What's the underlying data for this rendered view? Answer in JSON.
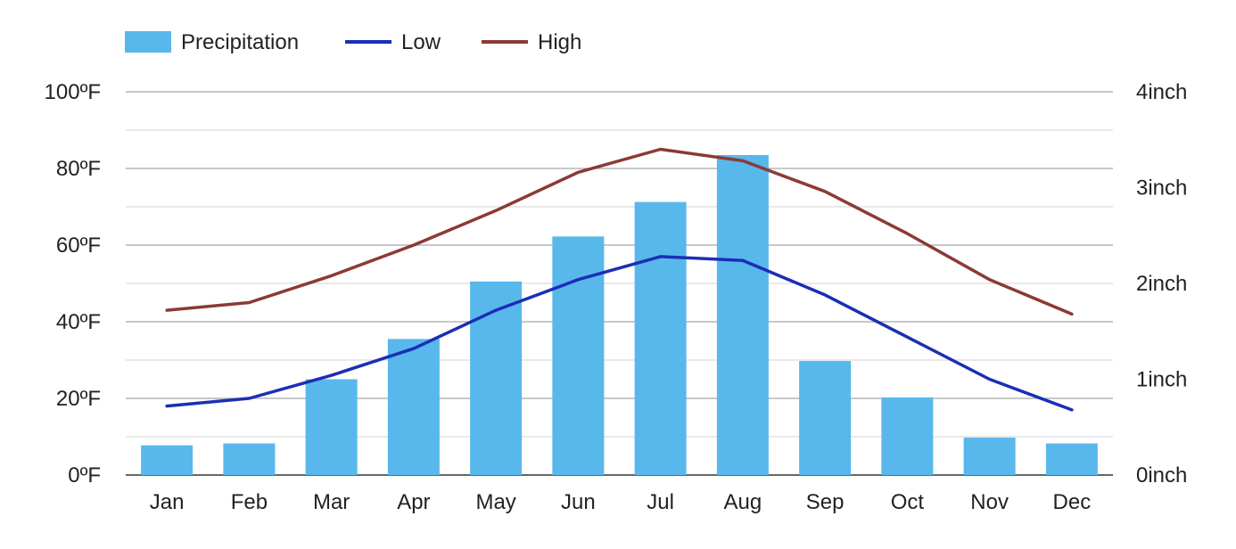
{
  "chart_data": {
    "type": "bar",
    "categories": [
      "Jan",
      "Feb",
      "Mar",
      "Apr",
      "May",
      "Jun",
      "Jul",
      "Aug",
      "Sep",
      "Oct",
      "Nov",
      "Dec"
    ],
    "series": [
      {
        "name": "Precipitation",
        "type": "bar",
        "axis": "right",
        "unit": "inch",
        "color": "#58b8ec",
        "values": [
          0.31,
          0.33,
          1.0,
          1.42,
          2.02,
          2.49,
          2.85,
          3.34,
          1.19,
          0.81,
          0.39,
          0.33
        ]
      },
      {
        "name": "Low",
        "type": "line",
        "axis": "left",
        "unit": "ºF",
        "color": "#1a2fb4",
        "values": [
          18,
          20,
          26,
          33,
          43,
          51,
          57,
          56,
          47,
          36,
          25,
          17
        ]
      },
      {
        "name": "High",
        "type": "line",
        "axis": "left",
        "unit": "ºF",
        "color": "#8b3a36",
        "values": [
          43,
          45,
          52,
          60,
          69,
          79,
          85,
          82,
          74,
          63,
          51,
          42
        ]
      }
    ],
    "left_axis": {
      "ticks": [
        "0ºF",
        "20ºF",
        "40ºF",
        "60ºF",
        "80ºF",
        "100ºF"
      ],
      "ylim": [
        0,
        100
      ]
    },
    "right_axis": {
      "ticks": [
        "0inch",
        "1inch",
        "2inch",
        "3inch",
        "4inch"
      ],
      "ylim": [
        0,
        4
      ]
    },
    "grid": true,
    "legend_position": "top-left"
  }
}
